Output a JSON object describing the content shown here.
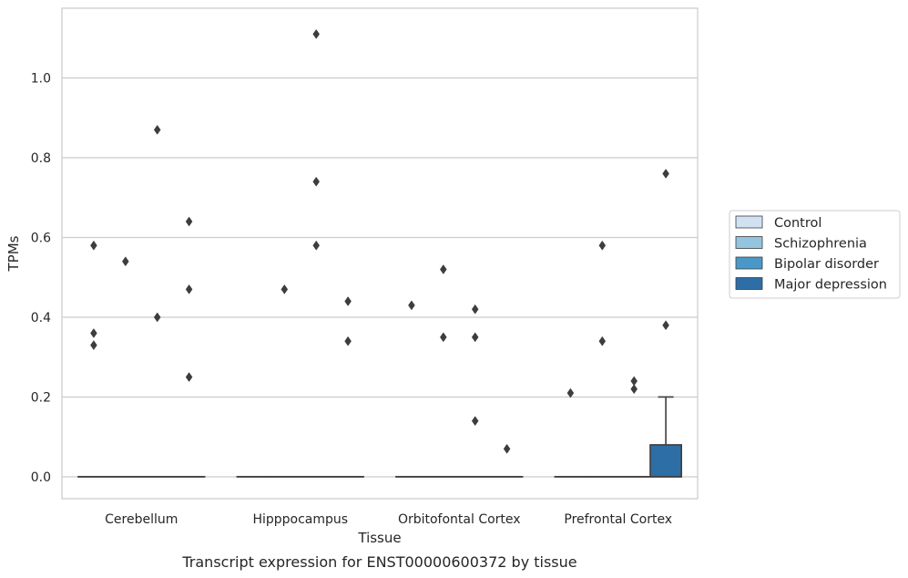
{
  "caption": "Transcript expression for ENST00000600372 by tissue",
  "chart_data": {
    "type": "box",
    "xlabel": "Tissue",
    "ylabel": "TPMs",
    "ylim": [
      -0.055,
      1.175
    ],
    "yticks": [
      0.0,
      0.2,
      0.4,
      0.6,
      0.8,
      1.0
    ],
    "ytick_labels": [
      "0.0",
      "0.2",
      "0.4",
      "0.6",
      "0.8",
      "1.0"
    ],
    "categories": [
      "Cerebellum",
      "Hipppocampus",
      "Orbitofontal Cortex",
      "Prefrontal Cortex"
    ],
    "grid": "horizontal",
    "legend_position": "right",
    "series": [
      {
        "name": "Control",
        "color": "#d0e1f2",
        "boxes": [
          {
            "q1": 0,
            "median": 0,
            "q3": 0,
            "whisker_low": 0,
            "whisker_high": 0,
            "outliers": [
              0.58,
              0.36,
              0.33
            ]
          },
          {
            "q1": 0,
            "median": 0,
            "q3": 0,
            "whisker_low": 0,
            "whisker_high": 0,
            "outliers": []
          },
          {
            "q1": 0,
            "median": 0,
            "q3": 0,
            "whisker_low": 0,
            "whisker_high": 0,
            "outliers": [
              0.43
            ]
          },
          {
            "q1": 0,
            "median": 0,
            "q3": 0,
            "whisker_low": 0,
            "whisker_high": 0,
            "outliers": [
              0.21
            ]
          }
        ]
      },
      {
        "name": "Schizophrenia",
        "color": "#94c4df",
        "boxes": [
          {
            "q1": 0,
            "median": 0,
            "q3": 0,
            "whisker_low": 0,
            "whisker_high": 0,
            "outliers": [
              0.54
            ]
          },
          {
            "q1": 0,
            "median": 0,
            "q3": 0,
            "whisker_low": 0,
            "whisker_high": 0,
            "outliers": [
              0.47
            ]
          },
          {
            "q1": 0,
            "median": 0,
            "q3": 0,
            "whisker_low": 0,
            "whisker_high": 0,
            "outliers": [
              0.52,
              0.35
            ]
          },
          {
            "q1": 0,
            "median": 0,
            "q3": 0,
            "whisker_low": 0,
            "whisker_high": 0,
            "outliers": [
              0.58,
              0.34
            ]
          }
        ]
      },
      {
        "name": "Bipolar disorder",
        "color": "#4a98c9",
        "boxes": [
          {
            "q1": 0,
            "median": 0,
            "q3": 0,
            "whisker_low": 0,
            "whisker_high": 0,
            "outliers": [
              0.87,
              0.4
            ]
          },
          {
            "q1": 0,
            "median": 0,
            "q3": 0,
            "whisker_low": 0,
            "whisker_high": 0,
            "outliers": [
              1.11,
              0.74,
              0.58
            ]
          },
          {
            "q1": 0,
            "median": 0,
            "q3": 0,
            "whisker_low": 0,
            "whisker_high": 0,
            "outliers": [
              0.42,
              0.35,
              0.14
            ]
          },
          {
            "q1": 0,
            "median": 0,
            "q3": 0,
            "whisker_low": 0,
            "whisker_high": 0,
            "outliers": [
              0.24,
              0.22
            ]
          }
        ]
      },
      {
        "name": "Major depression",
        "color": "#2e6ea6",
        "boxes": [
          {
            "q1": 0,
            "median": 0,
            "q3": 0,
            "whisker_low": 0,
            "whisker_high": 0,
            "outliers": [
              0.64,
              0.47,
              0.25
            ]
          },
          {
            "q1": 0,
            "median": 0,
            "q3": 0,
            "whisker_low": 0,
            "whisker_high": 0,
            "outliers": [
              0.44,
              0.34
            ]
          },
          {
            "q1": 0,
            "median": 0,
            "q3": 0,
            "whisker_low": 0,
            "whisker_high": 0,
            "outliers": [
              0.07
            ]
          },
          {
            "q1": 0,
            "median": 0,
            "q3": 0.08,
            "whisker_low": 0,
            "whisker_high": 0.2,
            "outliers": [
              0.76,
              0.38
            ]
          }
        ]
      }
    ]
  }
}
